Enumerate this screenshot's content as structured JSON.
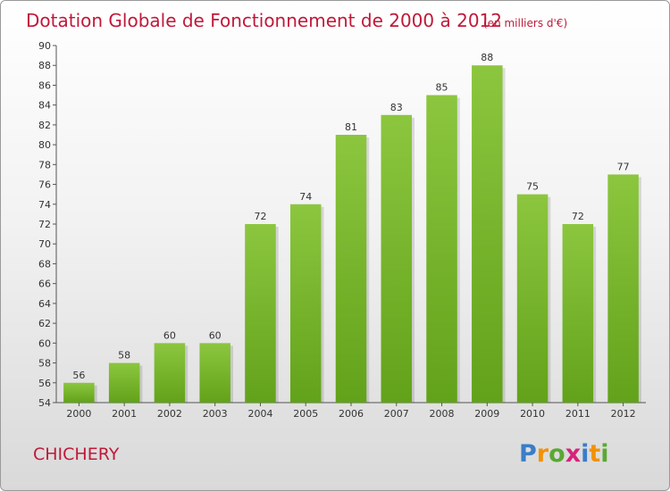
{
  "chart_data": {
    "type": "bar",
    "title": "Dotation Globale de Fonctionnement de 2000 à 2012",
    "subtitle": "(en milliers d'€)",
    "categories": [
      "2000",
      "2001",
      "2002",
      "2003",
      "2004",
      "2005",
      "2006",
      "2007",
      "2008",
      "2009",
      "2010",
      "2011",
      "2012"
    ],
    "values": [
      56,
      58,
      60,
      60,
      72,
      74,
      81,
      83,
      85,
      88,
      75,
      72,
      77
    ],
    "ylim": [
      54,
      90
    ],
    "ytick_step": 2,
    "grid": false,
    "bar_color": "#8cc63f",
    "bar_color_dark": "#62a21a"
  },
  "commune": "CHICHERY",
  "logo": {
    "letters": [
      "P",
      "r",
      "o",
      "x",
      "i",
      "t",
      "i"
    ],
    "colors": [
      "#3a7dc8",
      "#f39200",
      "#5aa832",
      "#d6237a",
      "#3a7dc8",
      "#f39200",
      "#5aa832"
    ]
  }
}
